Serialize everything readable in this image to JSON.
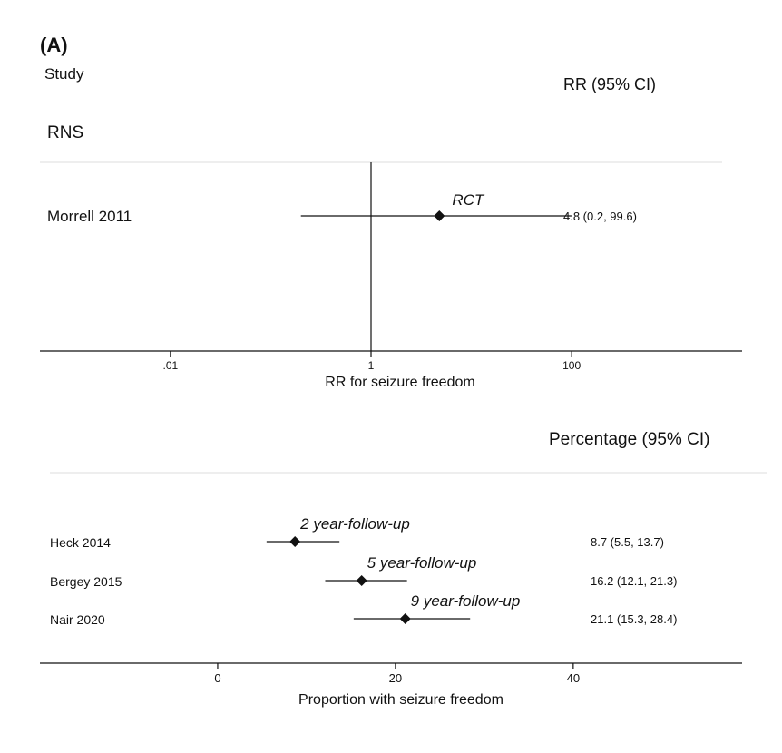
{
  "panel_label": "(A)",
  "chart_data": [
    {
      "type": "forest",
      "column_headers": {
        "left": "Study",
        "right": "RR (95% CI)"
      },
      "subgroup": "RNS",
      "xlabel": "RR for seizure freedom",
      "x_scale": "log",
      "xlim": [
        0.0005,
        5000
      ],
      "x_ticks": [
        {
          "value": 0.01,
          "label": ".01"
        },
        {
          "value": 1,
          "label": "1"
        },
        {
          "value": 100,
          "label": "100"
        }
      ],
      "reference_line": 1,
      "studies": [
        {
          "name": "Morrell 2011",
          "estimate": 4.8,
          "ci_low": 0.2,
          "ci_high": 99.6,
          "ci_label": "4.8 (0.2, 99.6)",
          "annotation": "RCT"
        }
      ]
    },
    {
      "type": "forest",
      "column_headers": {
        "right": "Percentage (95% CI)"
      },
      "xlabel": "Proportion with seizure freedom",
      "x_scale": "linear",
      "xlim": [
        -20,
        59
      ],
      "x_ticks": [
        {
          "value": 0,
          "label": "0"
        },
        {
          "value": 20,
          "label": "20"
        },
        {
          "value": 40,
          "label": "40"
        }
      ],
      "studies": [
        {
          "name": "Heck 2014",
          "estimate": 8.7,
          "ci_low": 5.5,
          "ci_high": 13.7,
          "ci_label": "8.7 (5.5, 13.7)",
          "annotation": "2 year-follow-up"
        },
        {
          "name": "Bergey 2015",
          "estimate": 16.2,
          "ci_low": 12.1,
          "ci_high": 21.3,
          "ci_label": "16.2 (12.1, 21.3)",
          "annotation": "5 year-follow-up"
        },
        {
          "name": "Nair 2020",
          "estimate": 21.1,
          "ci_low": 15.3,
          "ci_high": 28.4,
          "ci_label": "21.1 (15.3, 28.4)",
          "annotation": "9 year-follow-up"
        }
      ]
    }
  ]
}
